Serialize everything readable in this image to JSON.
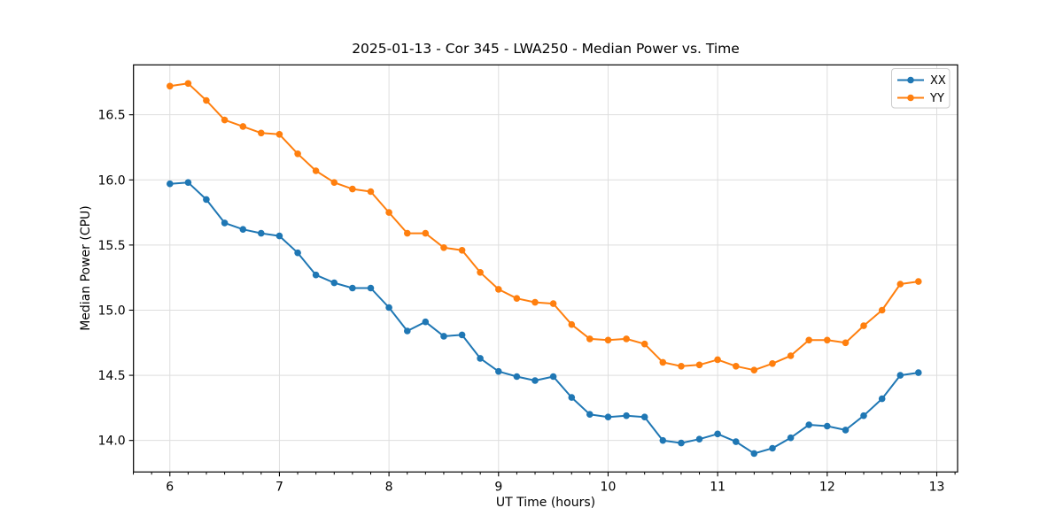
{
  "chart_data": {
    "type": "line",
    "title": "2025-01-13 - Cor 345 - LWA250 - Median Power vs. Time",
    "xlabel": "UT Time (hours)",
    "ylabel": "Median Power (CPU)",
    "x": [
      6.0,
      6.167,
      6.333,
      6.5,
      6.667,
      6.833,
      7.0,
      7.167,
      7.333,
      7.5,
      7.667,
      7.833,
      8.0,
      8.167,
      8.333,
      8.5,
      8.667,
      8.833,
      9.0,
      9.167,
      9.333,
      9.5,
      9.667,
      9.833,
      10.0,
      10.167,
      10.333,
      10.5,
      10.667,
      10.833,
      11.0,
      11.167,
      11.333,
      11.5,
      11.667,
      11.833,
      12.0,
      12.167,
      12.333,
      12.5,
      12.667,
      12.833
    ],
    "series": [
      {
        "name": "XX",
        "color": "#1f77b4",
        "values": [
          15.97,
          15.98,
          15.85,
          15.67,
          15.62,
          15.59,
          15.57,
          15.44,
          15.27,
          15.21,
          15.17,
          15.17,
          15.02,
          14.84,
          14.91,
          14.8,
          14.81,
          14.63,
          14.53,
          14.49,
          14.46,
          14.49,
          14.33,
          14.2,
          14.18,
          14.19,
          14.18,
          14.0,
          13.98,
          14.01,
          14.05,
          13.99,
          13.9,
          13.94,
          14.02,
          14.12,
          14.11,
          14.08,
          14.19,
          14.32,
          14.5,
          14.52
        ]
      },
      {
        "name": "YY",
        "color": "#ff7f0e",
        "values": [
          16.72,
          16.74,
          16.61,
          16.46,
          16.41,
          16.36,
          16.35,
          16.2,
          16.07,
          15.98,
          15.93,
          15.91,
          15.75,
          15.59,
          15.59,
          15.48,
          15.46,
          15.29,
          15.16,
          15.09,
          15.06,
          15.05,
          14.89,
          14.78,
          14.77,
          14.78,
          14.74,
          14.6,
          14.57,
          14.58,
          14.62,
          14.57,
          14.54,
          14.59,
          14.65,
          14.77,
          14.77,
          14.75,
          14.88,
          15.0,
          15.2,
          15.22
        ]
      }
    ],
    "xlim": [
      5.668,
      13.19
    ],
    "ylim": [
      13.758,
      16.883
    ],
    "xticks": [
      6,
      7,
      8,
      9,
      10,
      11,
      12,
      13
    ],
    "yticks": [
      14.0,
      14.5,
      15.0,
      15.5,
      16.0,
      16.5
    ],
    "x_minor_tick_step": 0.1667,
    "grid": true,
    "legend_position": "upper right",
    "marker": "circle",
    "colors": {
      "grid": "#dedede",
      "axes_border": "#000000",
      "legend_border": "#cccccc",
      "background": "#ffffff"
    }
  }
}
